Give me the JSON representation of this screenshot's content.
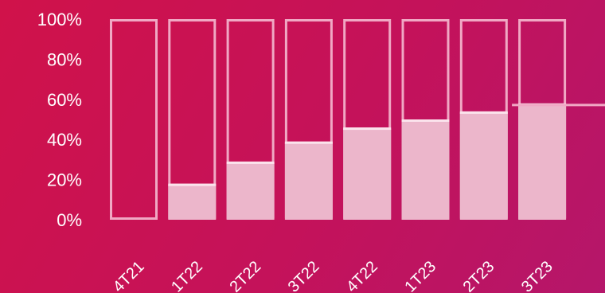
{
  "chart_data": {
    "type": "bar",
    "categories": [
      "4T21",
      "1T22",
      "2T22",
      "3T22",
      "4T22",
      "1T23",
      "2T23",
      "3T23"
    ],
    "values": [
      0,
      18,
      29,
      39,
      46,
      50,
      54,
      58
    ],
    "ylim": [
      0,
      100
    ],
    "yticks": [
      "0%",
      "20%",
      "40%",
      "60%",
      "80%",
      "100%"
    ],
    "ytick_values": [
      0,
      20,
      40,
      60,
      80,
      100
    ],
    "grid": false,
    "colors": {
      "bar_fill": "#ecb6cb",
      "bar_outline": "#f0a8c4",
      "bar_top_highlight": "#fbe3ec",
      "text": "#ffffff"
    }
  }
}
